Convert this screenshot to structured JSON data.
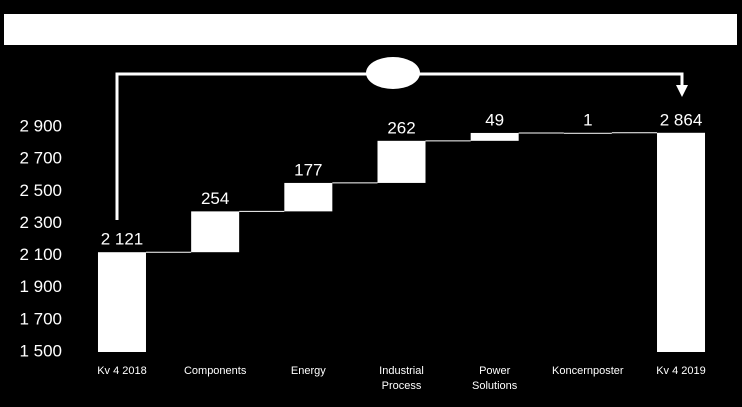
{
  "chart_data": {
    "type": "waterfall",
    "categories": [
      "Kv 4 2018",
      "Components",
      "Energy",
      "Industrial Process",
      "Power Solutions",
      "Koncernposter",
      "Kv 4 2019"
    ],
    "measure": [
      "absolute",
      "relative",
      "relative",
      "relative",
      "relative",
      "relative",
      "total"
    ],
    "values": [
      2121,
      254,
      177,
      262,
      49,
      1,
      2864
    ],
    "value_labels": [
      "2 121",
      "254",
      "177",
      "262",
      "49",
      "1",
      "2 864"
    ],
    "color": "#ffffff",
    "ylim": [
      1500,
      2900
    ],
    "yticks": [
      {
        "value": 1500,
        "label": "1 500"
      },
      {
        "value": 1700,
        "label": "1 700"
      },
      {
        "value": 1900,
        "label": "1 900"
      },
      {
        "value": 2100,
        "label": "2 100"
      },
      {
        "value": 2300,
        "label": "2 300"
      },
      {
        "value": 2500,
        "label": "2 500"
      },
      {
        "value": 2700,
        "label": "2 700"
      },
      {
        "value": 2900,
        "label": "2 900"
      }
    ]
  }
}
